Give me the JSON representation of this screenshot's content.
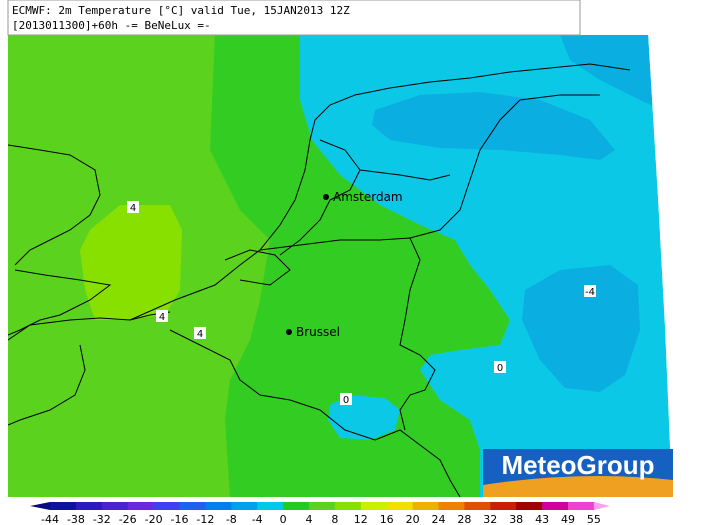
{
  "header": {
    "line1": "ECMWF: 2m Temperature [°C] valid Tue, 15JAN2013 12Z",
    "line2": "[2013011300]+60h -= BeNeLux =-"
  },
  "cities": [
    {
      "label": "Amsterdam"
    },
    {
      "label": "Brussel"
    }
  ],
  "contour_labels": [
    4,
    4,
    4,
    0,
    0,
    -4
  ],
  "logo": "MeteoGroup",
  "colorbar": {
    "ticks": [
      -44,
      -38,
      -32,
      -26,
      -20,
      -16,
      -12,
      -8,
      -4,
      0,
      4,
      8,
      12,
      16,
      20,
      24,
      28,
      32,
      38,
      43,
      49,
      55
    ],
    "colors": [
      "#0a0a80",
      "#1010a0",
      "#2a1ac0",
      "#4a22d0",
      "#6a28e0",
      "#4040f0",
      "#2060f0",
      "#0080f0",
      "#00a0f0",
      "#00c8e8",
      "#20cc20",
      "#5ad21e",
      "#88e000",
      "#c8f000",
      "#f0e000",
      "#f0b000",
      "#f08000",
      "#e05000",
      "#c82000",
      "#a00000",
      "#d000a0",
      "#f040d0",
      "#f8a0f0"
    ]
  }
}
